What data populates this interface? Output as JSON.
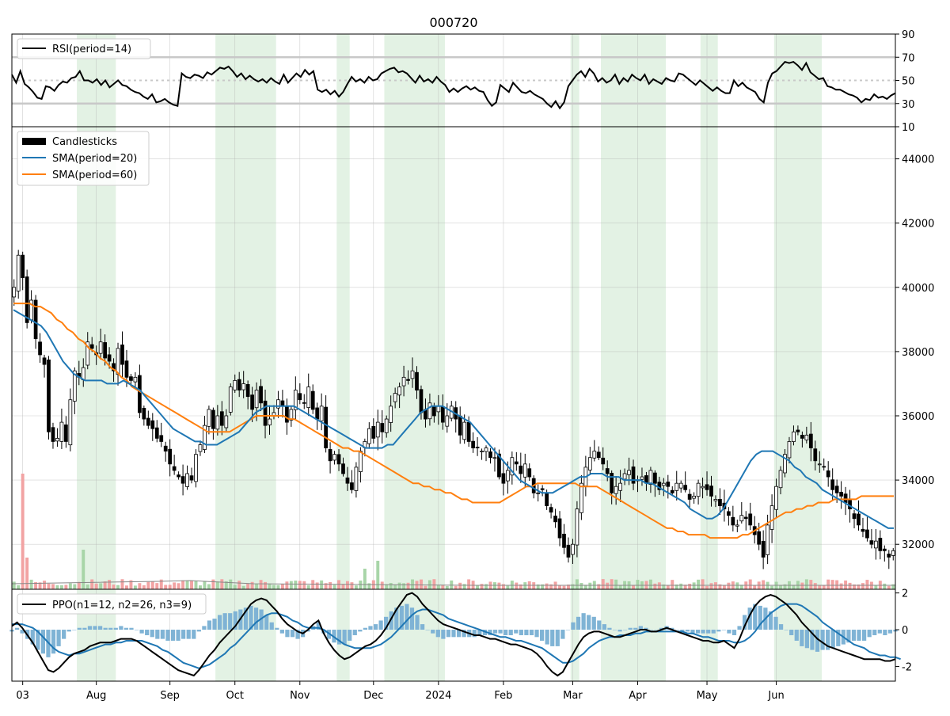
{
  "chart_data": {
    "type": "candlestick",
    "title": "000720",
    "x_tick_labels": [
      "03",
      "Aug",
      "Sep",
      "Oct",
      "Nov",
      "Dec",
      "2024",
      "Feb",
      "Mar",
      "Apr",
      "May",
      "Jun"
    ],
    "shaded_periods": [
      [
        15,
        23
      ],
      [
        47,
        60
      ],
      [
        75,
        77
      ],
      [
        86,
        99
      ],
      [
        129,
        130
      ],
      [
        136,
        150
      ],
      [
        159,
        162
      ],
      [
        176,
        186
      ]
    ],
    "colors": {
      "up": "#ffffff",
      "down": "#000000",
      "sma20": "#1f77b4",
      "sma60": "#ff7f0e",
      "shade": "#c8e6c9",
      "vol_up": "#a8d5a8",
      "vol_down": "#f2a3a3",
      "ppo_hist": "#7fb3d5"
    },
    "panels": {
      "rsi": {
        "legend": "RSI(period=14)",
        "ylim": [
          10,
          90
        ],
        "yticks": [
          90,
          70,
          50,
          30,
          10
        ],
        "guide_lines": [
          30,
          50,
          70
        ],
        "values": [
          55,
          48,
          58,
          47,
          44,
          40,
          35,
          34,
          45,
          44,
          41,
          46,
          49,
          48,
          52,
          53,
          58,
          50,
          50,
          48,
          51,
          46,
          50,
          44,
          47,
          50,
          46,
          45,
          42,
          40,
          39,
          36,
          34,
          38,
          31,
          32,
          34,
          31,
          29,
          28,
          56,
          53,
          52,
          55,
          54,
          52,
          57,
          55,
          58,
          61,
          60,
          62,
          58,
          53,
          56,
          51,
          54,
          51,
          49,
          51,
          48,
          52,
          49,
          47,
          55,
          48,
          52,
          56,
          53,
          59,
          55,
          58,
          42,
          40,
          42,
          38,
          41,
          36,
          40,
          47,
          53,
          49,
          51,
          48,
          53,
          50,
          51,
          56,
          58,
          60,
          61,
          57,
          58,
          56,
          52,
          48,
          54,
          49,
          51,
          48,
          53,
          49,
          46,
          40,
          43,
          40,
          43,
          45,
          42,
          44,
          41,
          40,
          33,
          28,
          31,
          46,
          43,
          40,
          48,
          44,
          40,
          39,
          41,
          38,
          36,
          34,
          30,
          27,
          32,
          26,
          31,
          45,
          50,
          55,
          58,
          53,
          60,
          56,
          49,
          52,
          48,
          50,
          55,
          47,
          52,
          49,
          55,
          52,
          50,
          55,
          47,
          51,
          49,
          47,
          52,
          50,
          49,
          56,
          55,
          52,
          49,
          46,
          50,
          47,
          44,
          41,
          44,
          41,
          39,
          39,
          50,
          45,
          48,
          44,
          42,
          40,
          34,
          31,
          48,
          56,
          58,
          62,
          66,
          65,
          66,
          63,
          59,
          65,
          57,
          54,
          51,
          52,
          45,
          44,
          42,
          42,
          40,
          38,
          37,
          35,
          31,
          34,
          33,
          38,
          35,
          36,
          34,
          37,
          39
        ]
      },
      "price": {
        "ylim": [
          30600,
          45000
        ],
        "yticks": [
          32000,
          34000,
          36000,
          38000,
          40000,
          42000,
          44000
        ],
        "legend": [
          "Candlesticks",
          "SMA(period=20)",
          "SMA(period=60)"
        ],
        "closes": [
          40000,
          41000,
          40300,
          38900,
          39600,
          38400,
          37900,
          37600,
          35500,
          35200,
          35300,
          35800,
          35200,
          36500,
          37400,
          37200,
          37500,
          38300,
          38100,
          37900,
          38300,
          37800,
          37700,
          37400,
          38100,
          37600,
          37200,
          37100,
          37200,
          36100,
          35900,
          35700,
          35600,
          35300,
          35200,
          34900,
          34500,
          34300,
          34100,
          33900,
          34200,
          34000,
          34800,
          35100,
          35700,
          36200,
          35600,
          36000,
          35700,
          36000,
          36900,
          37100,
          36800,
          37000,
          36600,
          36200,
          36800,
          36400,
          35700,
          35900,
          36100,
          36500,
          36300,
          35800,
          36200,
          36800,
          36500,
          36400,
          36900,
          36200,
          35900,
          36300,
          35000,
          34600,
          34800,
          34500,
          34200,
          33900,
          33700,
          34400,
          34900,
          35200,
          35600,
          35300,
          35800,
          35500,
          35900,
          36300,
          36700,
          36900,
          37200,
          37100,
          37400,
          36800,
          36100,
          35900,
          36400,
          36000,
          36300,
          35800,
          36000,
          36300,
          35900,
          35400,
          35800,
          35200,
          35000,
          35000,
          34900,
          35000,
          34700,
          34700,
          34100,
          33900,
          34300,
          34700,
          34500,
          34200,
          34500,
          34100,
          33600,
          33600,
          33700,
          33200,
          33000,
          32700,
          32200,
          31900,
          31600,
          32000,
          33100,
          33900,
          34400,
          34700,
          34900,
          34700,
          34500,
          34200,
          33600,
          33800,
          33900,
          34200,
          34300,
          33900,
          34000,
          34100,
          33900,
          34300,
          33900,
          33700,
          33900,
          33800,
          33600,
          33900,
          33900,
          33700,
          33400,
          33500,
          33900,
          33800,
          33700,
          33500,
          33400,
          33200,
          33100,
          32900,
          32600,
          32600,
          32900,
          32800,
          32600,
          32300,
          32000,
          31600,
          32600,
          33200,
          33800,
          34300,
          34800,
          35200,
          35500,
          35500,
          35300,
          35400,
          35000,
          34600,
          34500,
          34400,
          34100,
          33700,
          33600,
          33500,
          33300,
          33100,
          32800,
          32600,
          32400,
          32200,
          32000,
          32100,
          31800,
          31800,
          31600,
          31800
        ],
        "sma20": [
          39300,
          39200,
          39100,
          39000,
          38900,
          38800,
          38600,
          38300,
          38000,
          37700,
          37500,
          37300,
          37200,
          37100,
          37100,
          37100,
          37100,
          37000,
          37000,
          37000,
          37100,
          37000,
          36900,
          36800,
          36600,
          36400,
          36200,
          36000,
          35800,
          35600,
          35500,
          35400,
          35300,
          35200,
          35200,
          35100,
          35100,
          35100,
          35200,
          35300,
          35400,
          35500,
          35700,
          35900,
          36100,
          36200,
          36300,
          36300,
          36300,
          36300,
          36300,
          36300,
          36200,
          36100,
          36000,
          35900,
          35800,
          35700,
          35600,
          35500,
          35400,
          35300,
          35200,
          35100,
          35000,
          35000,
          35000,
          35000,
          35100,
          35100,
          35300,
          35500,
          35700,
          35900,
          36100,
          36200,
          36300,
          36300,
          36300,
          36200,
          36100,
          36000,
          35900,
          35800,
          35600,
          35400,
          35200,
          35000,
          34800,
          34600,
          34400,
          34200,
          34000,
          33900,
          33800,
          33700,
          33600,
          33600,
          33600,
          33700,
          33800,
          33900,
          34000,
          34100,
          34100,
          34200,
          34200,
          34200,
          34100,
          34100,
          34100,
          34000,
          34000,
          34000,
          34000,
          33900,
          33900,
          33800,
          33700,
          33600,
          33500,
          33400,
          33300,
          33100,
          33000,
          32900,
          32800,
          32800,
          32900,
          33100,
          33400,
          33700,
          34000,
          34300,
          34600,
          34800,
          34900,
          34900,
          34900,
          34800,
          34700,
          34600,
          34400,
          34300,
          34100,
          34000,
          33900,
          33700,
          33600,
          33500,
          33400,
          33300,
          33200,
          33100,
          33000,
          32900,
          32800,
          32700,
          32600,
          32500,
          32500
        ],
        "sma60": [
          39500,
          39500,
          39500,
          39500,
          39400,
          39400,
          39300,
          39200,
          39000,
          38900,
          38700,
          38600,
          38400,
          38300,
          38100,
          38000,
          37800,
          37700,
          37500,
          37400,
          37200,
          37100,
          36900,
          36800,
          36700,
          36600,
          36500,
          36400,
          36300,
          36200,
          36100,
          36000,
          35900,
          35800,
          35700,
          35600,
          35500,
          35500,
          35500,
          35500,
          35500,
          35600,
          35700,
          35800,
          35900,
          36000,
          36000,
          36000,
          36000,
          36000,
          36000,
          35900,
          35900,
          35800,
          35700,
          35600,
          35500,
          35400,
          35300,
          35200,
          35100,
          35000,
          35000,
          34900,
          34900,
          34800,
          34700,
          34600,
          34500,
          34400,
          34300,
          34200,
          34100,
          34000,
          33900,
          33900,
          33800,
          33800,
          33700,
          33700,
          33600,
          33600,
          33500,
          33400,
          33400,
          33300,
          33300,
          33300,
          33300,
          33300,
          33300,
          33400,
          33500,
          33600,
          33700,
          33800,
          33800,
          33900,
          33900,
          33900,
          33900,
          33900,
          33900,
          33900,
          33900,
          33800,
          33800,
          33800,
          33800,
          33700,
          33600,
          33500,
          33400,
          33300,
          33200,
          33100,
          33000,
          32900,
          32800,
          32700,
          32600,
          32500,
          32500,
          32400,
          32400,
          32300,
          32300,
          32300,
          32300,
          32200,
          32200,
          32200,
          32200,
          32200,
          32200,
          32300,
          32300,
          32400,
          32500,
          32600,
          32700,
          32800,
          32900,
          33000,
          33000,
          33100,
          33100,
          33200,
          33200,
          33300,
          33300,
          33300,
          33400,
          33400,
          33400,
          33400,
          33400,
          33500,
          33500,
          33500,
          33500,
          33500,
          33500,
          33500
        ]
      },
      "ppo": {
        "legend": "PPO(n1=12, n2=26, n3=9)",
        "ylim": [
          -2.8,
          2.2
        ],
        "yticks": [
          2,
          0,
          -2
        ],
        "ppo": [
          0.2,
          0.4,
          0.1,
          -0.3,
          -0.7,
          -1.2,
          -1.7,
          -2.2,
          -2.3,
          -2.1,
          -1.8,
          -1.5,
          -1.3,
          -1.2,
          -1.1,
          -0.9,
          -0.8,
          -0.7,
          -0.7,
          -0.7,
          -0.6,
          -0.5,
          -0.5,
          -0.5,
          -0.6,
          -0.8,
          -1.0,
          -1.2,
          -1.4,
          -1.6,
          -1.8,
          -2.0,
          -2.2,
          -2.3,
          -2.4,
          -2.5,
          -2.2,
          -1.8,
          -1.4,
          -1.1,
          -0.7,
          -0.4,
          -0.1,
          0.2,
          0.6,
          1.0,
          1.4,
          1.6,
          1.7,
          1.6,
          1.3,
          1.0,
          0.6,
          0.3,
          0.1,
          -0.1,
          -0.2,
          0.0,
          0.3,
          0.5,
          -0.2,
          -0.7,
          -1.1,
          -1.4,
          -1.6,
          -1.5,
          -1.3,
          -1.1,
          -0.9,
          -0.8,
          -0.6,
          -0.3,
          0.1,
          0.6,
          1.1,
          1.5,
          1.9,
          2.0,
          1.8,
          1.4,
          1.1,
          0.8,
          0.5,
          0.3,
          0.2,
          0.1,
          0.0,
          -0.1,
          -0.2,
          -0.3,
          -0.3,
          -0.4,
          -0.5,
          -0.5,
          -0.6,
          -0.7,
          -0.8,
          -0.8,
          -0.9,
          -1.0,
          -1.1,
          -1.3,
          -1.6,
          -2.0,
          -2.3,
          -2.5,
          -2.3,
          -1.8,
          -1.3,
          -0.8,
          -0.4,
          -0.2,
          -0.1,
          -0.1,
          -0.2,
          -0.3,
          -0.4,
          -0.4,
          -0.3,
          -0.2,
          -0.1,
          0.0,
          0.0,
          -0.1,
          -0.1,
          0.0,
          0.1,
          0.0,
          -0.1,
          -0.2,
          -0.3,
          -0.4,
          -0.5,
          -0.6,
          -0.6,
          -0.7,
          -0.7,
          -0.6,
          -0.8,
          -1.0,
          -0.5,
          0.2,
          0.8,
          1.3,
          1.6,
          1.8,
          1.9,
          1.8,
          1.6,
          1.4,
          1.1,
          0.8,
          0.4,
          0.1,
          -0.2,
          -0.5,
          -0.7,
          -0.9,
          -1.0,
          -1.1,
          -1.2,
          -1.3,
          -1.4,
          -1.5,
          -1.6,
          -1.6,
          -1.6,
          -1.6,
          -1.7,
          -1.7,
          -1.6
        ],
        "signal": [
          0.3,
          0.3,
          0.3,
          0.2,
          0.1,
          -0.1,
          -0.4,
          -0.7,
          -1.0,
          -1.2,
          -1.3,
          -1.4,
          -1.3,
          -1.3,
          -1.2,
          -1.1,
          -1.0,
          -0.9,
          -0.8,
          -0.8,
          -0.7,
          -0.7,
          -0.6,
          -0.6,
          -0.6,
          -0.6,
          -0.7,
          -0.8,
          -0.9,
          -1.1,
          -1.2,
          -1.4,
          -1.6,
          -1.8,
          -1.9,
          -2.0,
          -2.1,
          -2.0,
          -1.9,
          -1.7,
          -1.5,
          -1.3,
          -1.0,
          -0.8,
          -0.5,
          -0.2,
          0.1,
          0.4,
          0.6,
          0.8,
          0.9,
          0.9,
          0.8,
          0.7,
          0.5,
          0.4,
          0.2,
          0.1,
          0.1,
          0.1,
          0.0,
          -0.2,
          -0.4,
          -0.6,
          -0.8,
          -0.9,
          -1.0,
          -1.0,
          -1.0,
          -1.0,
          -0.9,
          -0.8,
          -0.6,
          -0.4,
          -0.1,
          0.2,
          0.5,
          0.8,
          1.0,
          1.1,
          1.1,
          1.0,
          0.9,
          0.8,
          0.6,
          0.5,
          0.4,
          0.3,
          0.2,
          0.1,
          0.0,
          -0.1,
          -0.2,
          -0.3,
          -0.4,
          -0.4,
          -0.5,
          -0.6,
          -0.6,
          -0.7,
          -0.8,
          -0.9,
          -1.0,
          -1.2,
          -1.4,
          -1.6,
          -1.8,
          -1.8,
          -1.7,
          -1.5,
          -1.3,
          -1.0,
          -0.8,
          -0.6,
          -0.5,
          -0.4,
          -0.4,
          -0.3,
          -0.3,
          -0.3,
          -0.2,
          -0.2,
          -0.1,
          -0.1,
          -0.1,
          -0.1,
          -0.1,
          -0.1,
          -0.1,
          -0.1,
          -0.2,
          -0.2,
          -0.3,
          -0.4,
          -0.4,
          -0.5,
          -0.6,
          -0.6,
          -0.6,
          -0.7,
          -0.7,
          -0.6,
          -0.4,
          -0.1,
          0.3,
          0.6,
          0.9,
          1.1,
          1.3,
          1.4,
          1.4,
          1.4,
          1.3,
          1.1,
          0.9,
          0.7,
          0.4,
          0.2,
          0.0,
          -0.2,
          -0.4,
          -0.6,
          -0.8,
          -0.9,
          -1.0,
          -1.2,
          -1.3,
          -1.4,
          -1.4,
          -1.5,
          -1.5,
          -1.6
        ]
      }
    }
  }
}
